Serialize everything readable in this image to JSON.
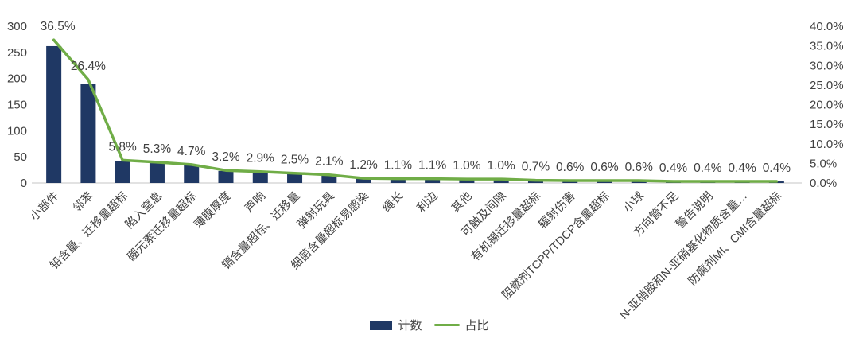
{
  "chart_data": {
    "type": "bar",
    "subtype": "pareto-combo-bar-line",
    "title": "",
    "categories": [
      "小部件",
      "邻苯",
      "铅含量、迁移量超标",
      "陷入窒息",
      "硼元素迁移量超标",
      "薄膜厚度",
      "声响",
      "镉含量超标、迁移量",
      "弹射玩具",
      "细菌含量超标易感染",
      "绳长",
      "利边",
      "其他",
      "可触及间隙",
      "有机锡迁移量超标",
      "辐射伤害",
      "阻燃剂TCPP/TDCP含量超标",
      "小球",
      "方向管不足",
      "警告说明",
      "N-亚硝胺和N-亚硝基化物质含量…",
      "防腐剂MI、CMI含量超标"
    ],
    "series": [
      {
        "name": "计数",
        "type": "bar",
        "axis": "left",
        "color": "#1F3864",
        "values": [
          262,
          190,
          42,
          38,
          34,
          23,
          21,
          18,
          15,
          9,
          8,
          8,
          7,
          7,
          5,
          4,
          4,
          4,
          3,
          3,
          3,
          3
        ]
      },
      {
        "name": "占比",
        "type": "line",
        "axis": "right",
        "color": "#70AD47",
        "values": [
          36.5,
          26.4,
          5.8,
          5.3,
          4.7,
          3.2,
          2.9,
          2.5,
          2.1,
          1.2,
          1.1,
          1.1,
          1.0,
          1.0,
          0.7,
          0.6,
          0.6,
          0.6,
          0.4,
          0.4,
          0.4,
          0.4
        ],
        "data_labels": [
          "36.5%",
          "26.4%",
          "5.8%",
          "5.3%",
          "4.7%",
          "3.2%",
          "2.9%",
          "2.5%",
          "2.1%",
          "1.2%",
          "1.1%",
          "1.1%",
          "1.0%",
          "1.0%",
          "0.7%",
          "0.6%",
          "0.6%",
          "0.6%",
          "0.4%",
          "0.4%",
          "0.4%",
          "0.4%"
        ]
      }
    ],
    "left_axis": {
      "min": 0,
      "max": 300,
      "tick_step": 50,
      "ticks": [
        "0",
        "50",
        "100",
        "150",
        "200",
        "250",
        "300"
      ]
    },
    "right_axis": {
      "min": 0,
      "max": 40,
      "tick_step": 5,
      "ticks": [
        "0.0%",
        "5.0%",
        "10.0%",
        "15.0%",
        "20.0%",
        "25.0%",
        "30.0%",
        "35.0%",
        "40.0%"
      ]
    },
    "grid": false,
    "legend_position": "bottom-center",
    "legend": [
      {
        "label": "计数",
        "type": "bar",
        "color": "#1F3864"
      },
      {
        "label": "占比",
        "type": "line",
        "color": "#70AD47"
      }
    ]
  },
  "colors": {
    "bar": "#1F3864",
    "line": "#70AD47",
    "text": "#404040",
    "axis_line": "#D9D9D9",
    "background": "#FFFFFF"
  }
}
